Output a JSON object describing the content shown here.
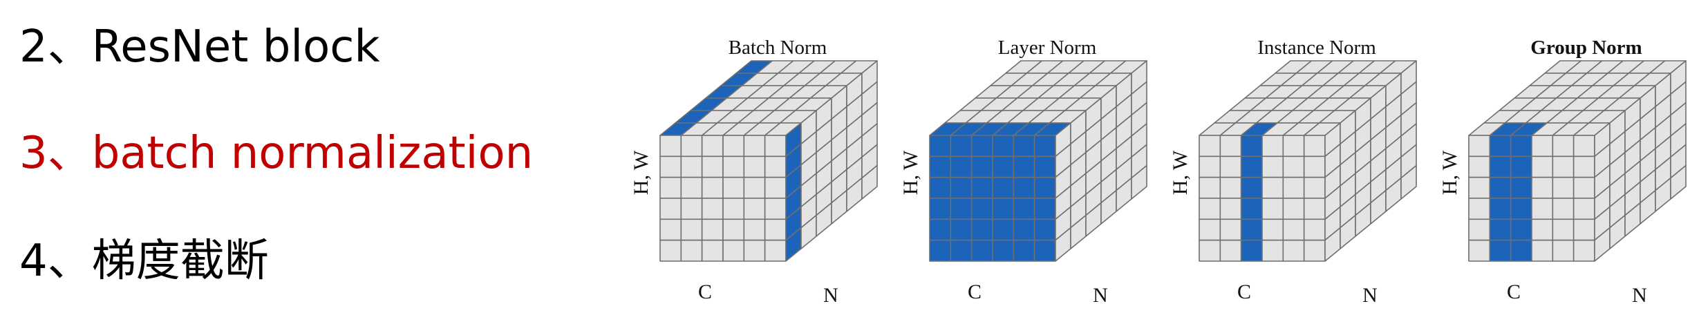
{
  "list": {
    "items": [
      {
        "text": "2、ResNet block",
        "color": "#000000"
      },
      {
        "text": "3、batch normalization",
        "color": "#c00000"
      },
      {
        "text": "4、梯度截断",
        "color": "#000000"
      }
    ]
  },
  "figure": {
    "colors": {
      "highlight": "#1b64b9",
      "cell": "#e4e4e4",
      "grid": "#6f6f6f"
    },
    "axis_labels": {
      "hw": "H, W",
      "c": "C",
      "n": "N"
    },
    "panels": [
      {
        "title": "Batch Norm",
        "title_bold": false,
        "highlight": "batch"
      },
      {
        "title": "Layer Norm",
        "title_bold": false,
        "highlight": "layer"
      },
      {
        "title": "Instance Norm",
        "title_bold": false,
        "highlight": "instance"
      },
      {
        "title": "Group Norm",
        "title_bold": true,
        "highlight": "group"
      }
    ]
  }
}
